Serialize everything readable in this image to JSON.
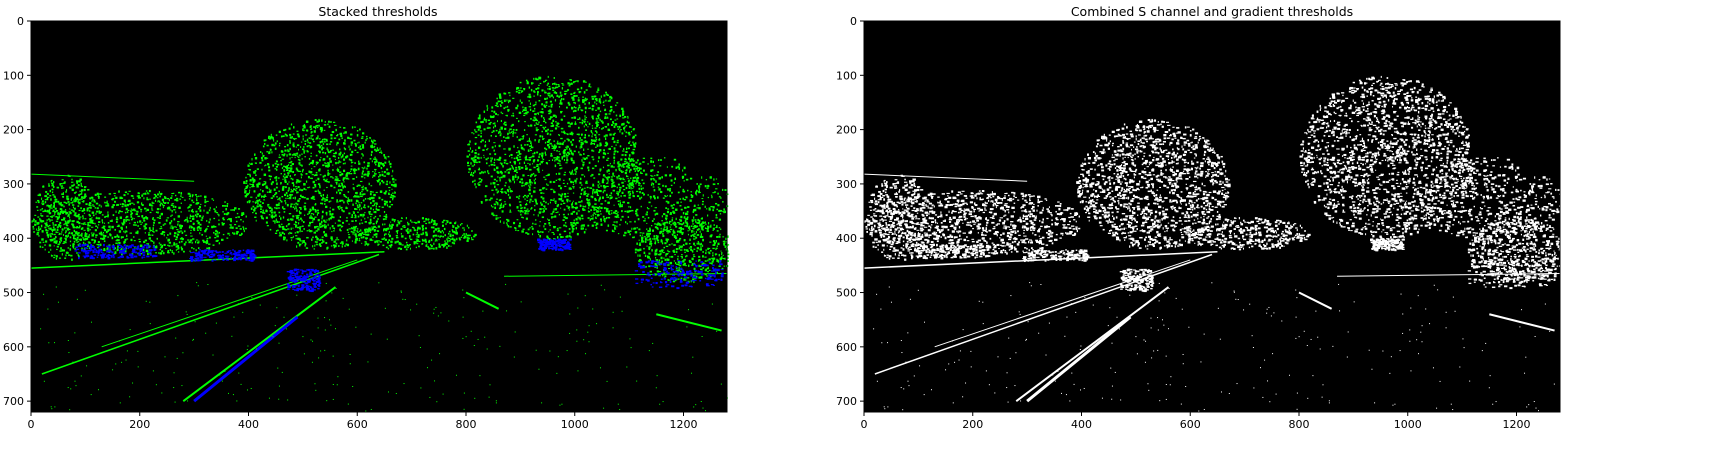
{
  "figure": {
    "left": {
      "title": "Stacked thresholds",
      "xticks": [
        "0",
        "200",
        "400",
        "600",
        "800",
        "1000",
        "1200"
      ],
      "yticks": [
        "0",
        "100",
        "200",
        "300",
        "400",
        "500",
        "600",
        "700"
      ]
    },
    "right": {
      "title": "Combined S channel and gradient thresholds",
      "xticks": [
        "0",
        "200",
        "400",
        "600",
        "800",
        "1000",
        "1200"
      ],
      "yticks": [
        "0",
        "100",
        "200",
        "300",
        "400",
        "500",
        "600",
        "700"
      ]
    }
  },
  "chart_data": [
    {
      "type": "image",
      "title": "Stacked thresholds",
      "xlim": [
        0,
        1280
      ],
      "ylim": [
        720,
        0
      ],
      "xticks": [
        0,
        200,
        400,
        600,
        800,
        1000,
        1200
      ],
      "yticks": [
        0,
        100,
        200,
        300,
        400,
        500,
        600,
        700
      ],
      "colors": {
        "background": "#000000",
        "gradient_channel": "#00ff00",
        "color_channel": "#0000ff"
      }
    },
    {
      "type": "image",
      "title": "Combined S channel and gradient thresholds",
      "xlim": [
        0,
        1280
      ],
      "ylim": [
        720,
        0
      ],
      "xticks": [
        0,
        200,
        400,
        600,
        800,
        1000,
        1200
      ],
      "yticks": [
        0,
        100,
        200,
        300,
        400,
        500,
        600,
        700
      ],
      "colors": {
        "background": "#000000",
        "foreground": "#ffffff"
      }
    }
  ]
}
